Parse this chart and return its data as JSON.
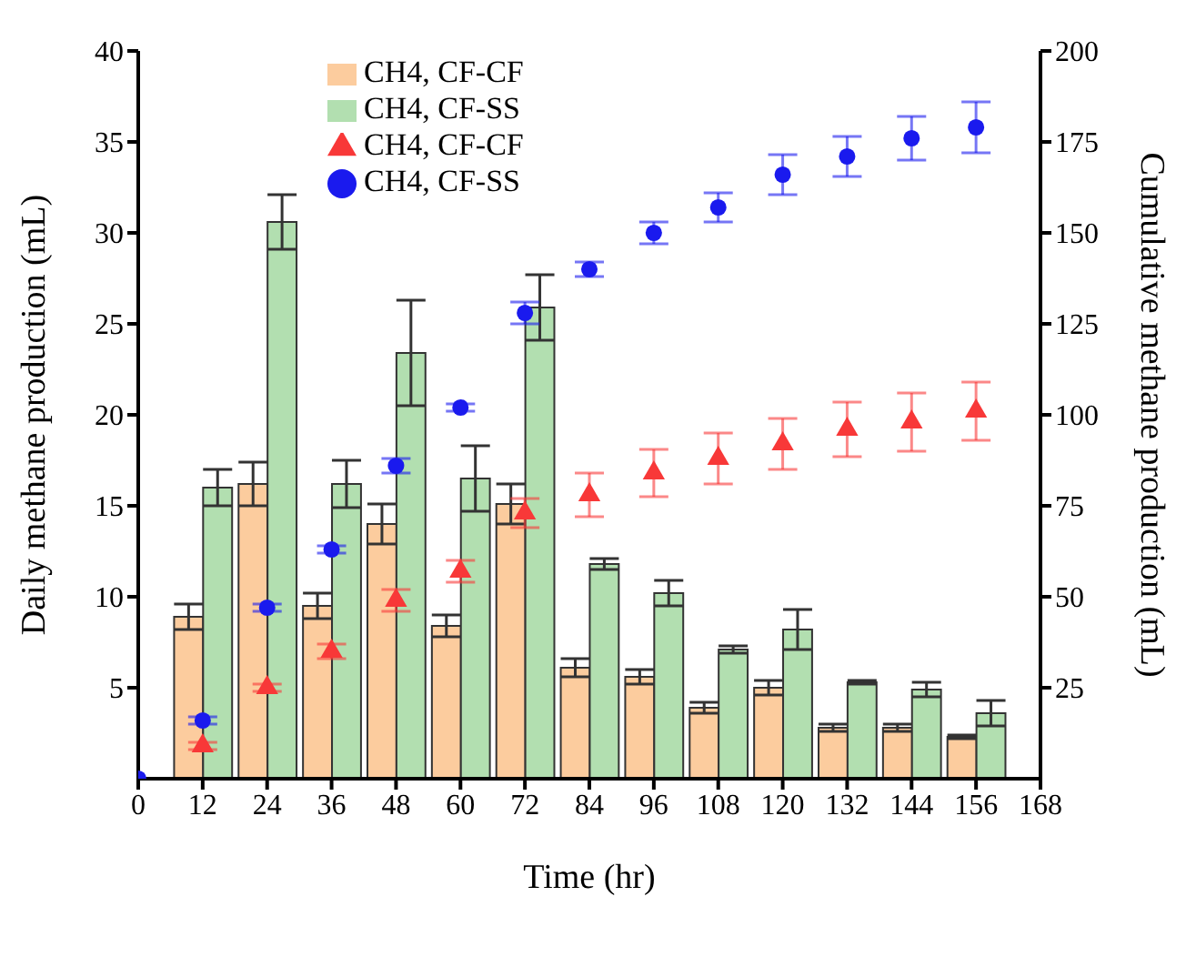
{
  "chart_data": {
    "type": "bar",
    "xlabel": "Time (hr)",
    "ylabel": "Daily methane production (mL)",
    "y2label": "Cumulative methane production (mL)",
    "x": [
      12,
      24,
      36,
      48,
      60,
      72,
      84,
      96,
      108,
      120,
      132,
      144,
      156
    ],
    "xlim": [
      0,
      168
    ],
    "xticks": [
      0,
      12,
      24,
      36,
      48,
      60,
      72,
      84,
      96,
      108,
      120,
      132,
      144,
      156,
      168
    ],
    "ylim": [
      0,
      40
    ],
    "yticks": [
      5,
      10,
      15,
      20,
      25,
      30,
      35,
      40
    ],
    "y2lim": [
      0,
      200
    ],
    "y2ticks": [
      25,
      50,
      75,
      100,
      125,
      150,
      175,
      200
    ],
    "legend": "top left",
    "grid": false,
    "series": [
      {
        "name": "CH4, CF-CF",
        "color": "#fccc9e",
        "values": [
          8.9,
          16.2,
          9.5,
          14.0,
          8.4,
          15.1,
          6.1,
          5.6,
          3.9,
          5.0,
          2.8,
          2.8,
          2.3
        ],
        "errors": [
          0.7,
          1.2,
          0.7,
          1.1,
          0.6,
          1.1,
          0.5,
          0.4,
          0.3,
          0.4,
          0.2,
          0.2,
          0.1
        ]
      },
      {
        "name": "CH4, CF-SS",
        "color": "#b2dfb0",
        "values": [
          16.0,
          30.6,
          16.2,
          23.4,
          16.5,
          25.9,
          11.8,
          10.2,
          7.1,
          8.2,
          5.3,
          4.9,
          3.6
        ],
        "errors": [
          1.0,
          1.5,
          1.3,
          2.9,
          1.8,
          1.8,
          0.3,
          0.7,
          0.2,
          1.1,
          0.1,
          0.4,
          0.7
        ]
      },
      {
        "name": "CH4, CF-CF",
        "type": "scatter",
        "axis": "y2",
        "marker": "triangle",
        "color": "#f83838",
        "x": [
          12,
          24,
          36,
          48,
          60,
          72,
          84,
          96,
          108,
          120,
          132,
          144,
          156
        ],
        "values": [
          9,
          25,
          35,
          49,
          57,
          73,
          78,
          84,
          88,
          92,
          96,
          98,
          101
        ],
        "errors": [
          1,
          1,
          2,
          3,
          3,
          4,
          6,
          6.5,
          7,
          7,
          7.5,
          8,
          8
        ]
      },
      {
        "name": "CH4, CF-SS",
        "type": "scatter",
        "axis": "y2",
        "marker": "circle",
        "color": "#1a1aee",
        "x": [
          0,
          12,
          24,
          36,
          48,
          60,
          72,
          84,
          96,
          108,
          120,
          132,
          144,
          156
        ],
        "values": [
          0,
          16,
          47,
          63,
          86,
          102,
          128,
          140,
          150,
          157,
          166,
          171,
          176,
          179
        ],
        "errors": [
          null,
          1,
          1,
          1,
          2,
          1,
          3,
          2,
          3,
          4,
          5.5,
          5.5,
          6,
          7
        ]
      }
    ]
  }
}
